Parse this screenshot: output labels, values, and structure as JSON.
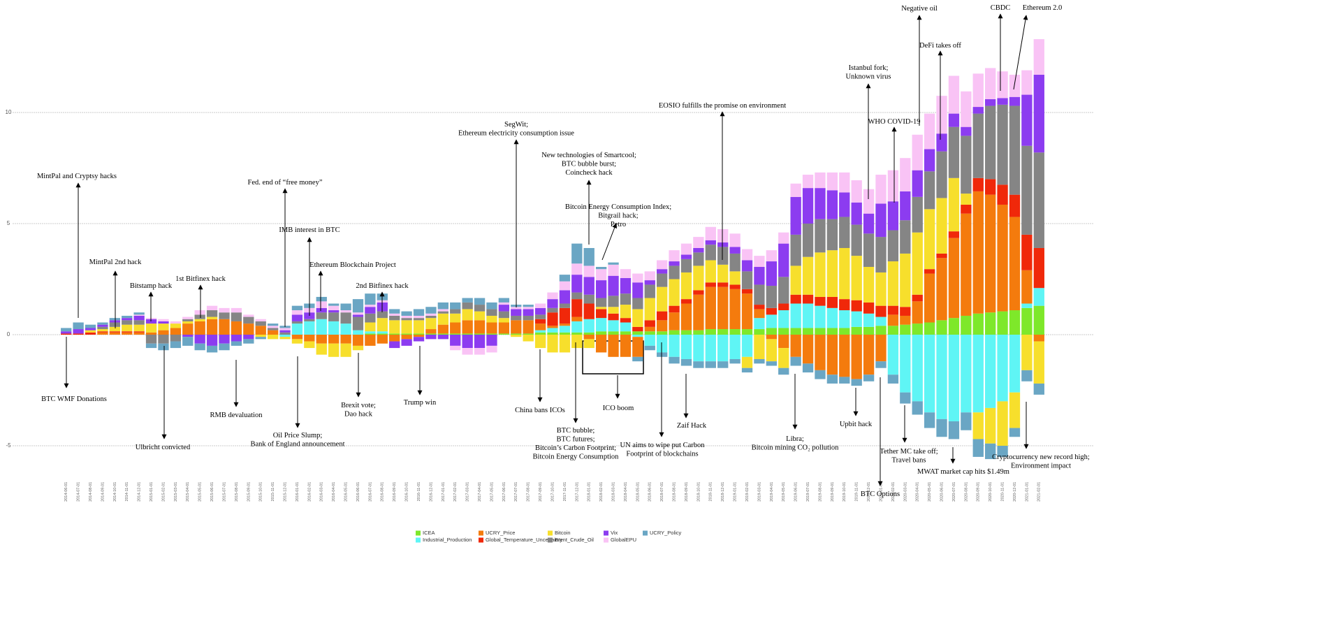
{
  "chart_data": {
    "type": "stacked_bar",
    "categories": [
      "2014-06-01",
      "2014-07-01",
      "2014-08-01",
      "2014-09-01",
      "2014-10-01",
      "2014-11-01",
      "2014-12-01",
      "2015-01-01",
      "2015-02-01",
      "2015-03-01",
      "2015-04-01",
      "2015-05-01",
      "2015-06-01",
      "2015-07-01",
      "2015-08-01",
      "2015-09-01",
      "2015-10-01",
      "2015-11-01",
      "2015-12-01",
      "2016-01-01",
      "2016-02-01",
      "2016-03-01",
      "2016-04-01",
      "2016-05-01",
      "2016-06-01",
      "2016-07-01",
      "2016-08-01",
      "2016-09-01",
      "2016-10-01",
      "2016-11-01",
      "2016-12-01",
      "2017-01-01",
      "2017-02-01",
      "2017-03-01",
      "2017-04-01",
      "2017-05-01",
      "2017-06-01",
      "2017-07-01",
      "2017-08-01",
      "2017-09-01",
      "2017-10-01",
      "2017-11-01",
      "2017-12-01",
      "2018-01-01",
      "2018-02-01",
      "2018-03-01",
      "2018-04-01",
      "2018-05-01",
      "2018-06-01",
      "2018-07-01",
      "2018-08-01",
      "2018-09-01",
      "2018-10-01",
      "2018-11-01",
      "2018-12-01",
      "2019-01-01",
      "2019-02-01",
      "2019-03-01",
      "2019-04-01",
      "2019-05-01",
      "2019-06-01",
      "2019-07-01",
      "2019-08-01",
      "2019-09-01",
      "2019-10-01",
      "2019-11-01",
      "2019-12-01",
      "2020-01-01",
      "2020-02-01",
      "2020-03-01",
      "2020-04-01",
      "2020-05-01",
      "2020-06-01",
      "2020-07-01",
      "2020-08-01",
      "2020-09-01",
      "2020-10-01",
      "2020-11-01",
      "2020-12-01",
      "2021-01-01",
      "2021-02-01"
    ],
    "series": [
      {
        "name": "ICEA",
        "color": "#7ee82a",
        "values": [
          0,
          0,
          0,
          0,
          0,
          0,
          0,
          0,
          0,
          0,
          0,
          0,
          0,
          0,
          0,
          0,
          0,
          0,
          0,
          0,
          0,
          0,
          0,
          0,
          0,
          0.05,
          0.05,
          0.05,
          0.05,
          0.05,
          0.05,
          0.05,
          0.05,
          0.05,
          0.05,
          0.05,
          0.05,
          0.05,
          0.05,
          0.1,
          0.1,
          0.1,
          0.1,
          0.1,
          0.15,
          0.15,
          0.15,
          0.15,
          0.15,
          0.15,
          0.2,
          0.2,
          0.2,
          0.25,
          0.25,
          0.25,
          0.25,
          0.25,
          0.3,
          0.3,
          0.3,
          0.3,
          0.3,
          0.3,
          0.3,
          0.35,
          0.35,
          0.4,
          0.4,
          0.45,
          0.5,
          0.55,
          0.65,
          0.75,
          0.85,
          0.95,
          1.0,
          1.05,
          1.1,
          1.2,
          1.3
        ]
      },
      {
        "name": "Industrial_Production",
        "color": "#5ff5f5",
        "values": [
          0,
          0,
          0,
          0,
          0,
          0,
          0,
          0,
          0,
          0,
          0,
          0,
          0,
          0,
          0,
          0,
          0,
          0,
          -0.1,
          0.5,
          0.6,
          0.7,
          0.6,
          0.5,
          0.2,
          0.1,
          0.1,
          0,
          0,
          0,
          0,
          0,
          0,
          0,
          0,
          0,
          0,
          0,
          0,
          0.1,
          0.2,
          0.3,
          0.5,
          0.6,
          0.6,
          0.5,
          0.4,
          -0.1,
          -0.5,
          -0.8,
          -1.0,
          -1.1,
          -1.2,
          -1.2,
          -1.2,
          -1.1,
          -1.0,
          0.5,
          0.6,
          0.8,
          1.1,
          1.1,
          1.0,
          0.9,
          0.8,
          0.7,
          0.6,
          0.4,
          -1.8,
          -2.6,
          -3.0,
          -3.5,
          -3.8,
          -3.9,
          -3.5,
          -3.5,
          -3.3,
          -3.0,
          -2.6,
          0.2,
          0.8
        ]
      },
      {
        "name": "UCRY_Price",
        "color": "#f47b0d",
        "values": [
          0,
          0,
          0,
          0.1,
          0.1,
          0.1,
          0.1,
          0.1,
          0.2,
          0.3,
          0.5,
          0.6,
          0.7,
          0.7,
          0.6,
          0.5,
          0.4,
          0.2,
          0,
          -0.2,
          -0.3,
          -0.4,
          -0.4,
          -0.4,
          -0.5,
          -0.5,
          -0.4,
          -0.3,
          -0.2,
          -0.1,
          0.2,
          0.4,
          0.5,
          0.6,
          0.6,
          0.5,
          0.5,
          0.6,
          0.6,
          0.3,
          0.1,
          0.1,
          0.2,
          -0.2,
          -0.8,
          -1.0,
          -1.0,
          -0.9,
          0.2,
          0.5,
          0.8,
          1.2,
          1.6,
          1.9,
          1.9,
          1.8,
          1.6,
          0.4,
          -0.2,
          -0.6,
          -1.0,
          -1.3,
          -1.6,
          -1.8,
          -1.9,
          -2.0,
          -1.8,
          -1.2,
          0.5,
          0.4,
          1.0,
          2.2,
          2.8,
          3.6,
          4.6,
          5.5,
          5.3,
          4.8,
          4.2,
          1.5,
          -0.3
        ]
      },
      {
        "name": "Global_Temperature_Uncertainty",
        "color": "#f0280a",
        "values": [
          0.05,
          0.05,
          0.1,
          0.05,
          0.05,
          0.05,
          0.05,
          0,
          0,
          0,
          0,
          0,
          0,
          0,
          0,
          0,
          0,
          0,
          0,
          0,
          0,
          0,
          0,
          0,
          0,
          0,
          0,
          0,
          0,
          0,
          0,
          0,
          0,
          0,
          0,
          0,
          0,
          0,
          0,
          0.2,
          0.6,
          0.7,
          0.8,
          0.7,
          0.4,
          0.3,
          0.2,
          0.2,
          0.3,
          0.4,
          0.3,
          0.2,
          0.2,
          0.2,
          0.2,
          0.2,
          0.2,
          0.2,
          0.3,
          0.3,
          0.4,
          0.4,
          0.4,
          0.5,
          0.5,
          0.5,
          0.5,
          0.5,
          0.4,
          0.4,
          0.3,
          0.2,
          0.2,
          0.3,
          0.4,
          0.6,
          0.7,
          0.9,
          1.0,
          1.6,
          1.8
        ]
      },
      {
        "name": "Bitcoin",
        "color": "#f7df2c",
        "values": [
          0,
          0,
          0.1,
          0.1,
          0.2,
          0.3,
          0.3,
          0.4,
          0.3,
          0.2,
          0.1,
          0.1,
          0.1,
          0,
          0,
          0,
          -0.1,
          -0.2,
          -0.1,
          -0.2,
          -0.3,
          -0.5,
          -0.6,
          -0.6,
          -0.2,
          0.4,
          0.6,
          0.6,
          0.6,
          0.6,
          0.5,
          0.5,
          0.4,
          0.5,
          0.4,
          0.3,
          0.2,
          -0.1,
          -0.3,
          -0.6,
          -0.8,
          -0.8,
          -0.6,
          -0.4,
          0.1,
          0.3,
          0.6,
          0.8,
          1.0,
          1.1,
          1.2,
          1.2,
          1.1,
          1.0,
          0.8,
          0.6,
          -0.5,
          -1.1,
          -1.0,
          -0.9,
          1.3,
          1.7,
          2.0,
          2.1,
          2.3,
          2.0,
          1.6,
          1.5,
          2.0,
          2.4,
          2.8,
          2.7,
          2.5,
          2.4,
          0.5,
          -1.2,
          -1.6,
          -2.0,
          -1.6,
          -1.6,
          -1.9
        ]
      },
      {
        "name": "Brent_Crude_Oil",
        "color": "#858585",
        "values": [
          0,
          0,
          0,
          0.1,
          0.2,
          0.2,
          0.2,
          -0.4,
          -0.4,
          -0.3,
          0.1,
          0.2,
          0.3,
          0.3,
          0.4,
          0.3,
          0.2,
          0.1,
          0.1,
          0.1,
          0.1,
          0.3,
          0.4,
          0.5,
          0.6,
          0.4,
          0.3,
          0.2,
          0.1,
          0.1,
          0.1,
          0.1,
          0.2,
          0.3,
          0.3,
          0.3,
          0.3,
          0.2,
          0.2,
          0.2,
          0.2,
          0.2,
          0.3,
          0.4,
          0.4,
          0.5,
          0.5,
          0.5,
          0.6,
          0.6,
          0.6,
          0.6,
          0.6,
          0.7,
          0.8,
          0.8,
          0.8,
          0.9,
          1.0,
          1.2,
          1.4,
          1.5,
          1.5,
          1.4,
          1.4,
          1.4,
          1.5,
          1.6,
          1.4,
          1.5,
          1.6,
          1.7,
          2.1,
          2.3,
          2.6,
          2.9,
          3.3,
          3.6,
          4.0,
          4.0,
          4.3
        ]
      },
      {
        "name": "Vix",
        "color": "#8c3cf0",
        "values": [
          0.1,
          0.2,
          0.1,
          0.1,
          0.1,
          0.1,
          0.2,
          0.2,
          0.1,
          0,
          -0.1,
          -0.4,
          -0.5,
          -0.4,
          -0.3,
          -0.2,
          0,
          0,
          0.1,
          0.3,
          0.3,
          0.2,
          0.1,
          0,
          0.1,
          0.3,
          0.4,
          -0.3,
          -0.3,
          -0.2,
          -0.2,
          -0.2,
          -0.5,
          -0.6,
          -0.6,
          -0.5,
          0.3,
          0.3,
          0.3,
          0.3,
          0.4,
          0.6,
          0.8,
          0.8,
          0.8,
          0.9,
          0.7,
          0.7,
          0.2,
          0.2,
          0.2,
          0.2,
          0.2,
          0.2,
          0.2,
          0.3,
          0.5,
          0.8,
          1.1,
          1.5,
          1.7,
          1.6,
          1.4,
          1.3,
          1.1,
          1.0,
          0.9,
          1.5,
          1.3,
          1.3,
          1.2,
          1.0,
          0.8,
          0.6,
          0.4,
          0.3,
          0.3,
          0.3,
          0.4,
          2.3,
          3.5
        ]
      },
      {
        "name": "GlobalEPU",
        "color": "#f9c3f5",
        "values": [
          0,
          0,
          0,
          0,
          0,
          0,
          0.05,
          0.05,
          0.1,
          0.1,
          0.1,
          0.2,
          0.2,
          0.2,
          0.2,
          0.1,
          0.1,
          0.1,
          0.1,
          0.2,
          0.2,
          0.3,
          0.2,
          0.1,
          0.1,
          0.1,
          0.1,
          0.1,
          0.1,
          0.1,
          0.1,
          0.1,
          -0.2,
          -0.3,
          -0.3,
          -0.3,
          0.1,
          0.1,
          0.1,
          0.2,
          0.3,
          0.4,
          0.5,
          0.5,
          0.5,
          0.5,
          0.4,
          0.4,
          0.4,
          0.4,
          0.5,
          0.5,
          0.5,
          0.6,
          0.6,
          0.6,
          0.5,
          0.5,
          0.5,
          0.5,
          0.6,
          0.6,
          0.7,
          0.8,
          0.9,
          1.0,
          1.1,
          1.3,
          1.4,
          1.5,
          1.6,
          1.6,
          1.7,
          1.7,
          1.6,
          1.5,
          1.4,
          1.2,
          1.0,
          1.1,
          1.6
        ]
      },
      {
        "name": "UCRY_Policy",
        "color": "#6aa6c4",
        "values": [
          0.15,
          0.3,
          0.15,
          0.1,
          0.1,
          0.1,
          0.1,
          -0.2,
          -0.3,
          -0.3,
          -0.4,
          -0.3,
          -0.3,
          -0.3,
          -0.2,
          -0.2,
          -0.1,
          0.1,
          0.1,
          0.2,
          0.2,
          0.2,
          0.1,
          0.3,
          0.6,
          0.5,
          0.3,
          0.2,
          0.2,
          0.3,
          0.3,
          0.3,
          0.3,
          0.2,
          0.3,
          0.3,
          0.2,
          0.1,
          0.1,
          0,
          0,
          0.3,
          0.9,
          0.8,
          0.1,
          0.1,
          0,
          -0.2,
          -0.2,
          -0.2,
          -0.3,
          -0.3,
          -0.3,
          -0.3,
          -0.3,
          -0.2,
          -0.2,
          -0.2,
          -0.2,
          -0.3,
          -0.4,
          -0.4,
          -0.4,
          -0.4,
          -0.3,
          -0.3,
          -0.3,
          -0.3,
          -0.4,
          -0.5,
          -0.6,
          -0.7,
          -0.8,
          -0.8,
          -0.8,
          -0.8,
          -0.7,
          -0.5,
          -0.4,
          -0.5,
          -0.5
        ]
      }
    ],
    "ylim": [
      -6.5,
      15
    ],
    "yticks": [
      -5,
      0,
      5,
      10
    ],
    "grid": true,
    "annotations": [
      [
        "MintPal and Cryptsy hacks"
      ],
      [
        "BTC WMF Donations"
      ],
      [
        "MintPal 2nd hack"
      ],
      [
        "Bitstamp hack"
      ],
      [
        "1st Bitfinex hack"
      ],
      [
        "Ulbricht convicted"
      ],
      [
        "RMB devaluation"
      ],
      [
        "Fed. end of “free money”"
      ],
      [
        "Oil Price Slump;",
        "Bank of England announcement"
      ],
      [
        "IMB interest in BTC"
      ],
      [
        "Ethereum Blockchain Project"
      ],
      [
        "2nd Bitfinex hack"
      ],
      [
        "Brexit vote;",
        "Dao hack"
      ],
      [
        "Trump win"
      ],
      [
        "SegWit;",
        "Ethereum electricity consumption issue"
      ],
      [
        "China bans ICOs"
      ],
      [
        "New technologies of Smartcool;",
        "BTC bubble burst;",
        "Coincheck hack"
      ],
      [
        "Bitcoin Energy Consumption Index;",
        "Bitgrail hack;",
        "Petro"
      ],
      [
        "BTC bubble;",
        "BTC futures;",
        "Bitcoin’s Carbon Footprint;",
        "Bitcoin Energy Consumption"
      ],
      [
        "ICO boom"
      ],
      [
        "UN aims to wipe put Carbon",
        "Footprint of blockchains"
      ],
      [
        "EOSIO fulfills the promise on environment"
      ],
      [
        "Zaif Hack"
      ],
      [
        "Libra;",
        "Bitcoin mining CO₂ pollution"
      ],
      [
        "Istanbul fork;",
        "Unknown virus"
      ],
      [
        "Upbit hack"
      ],
      [
        "WHO COVID-19"
      ],
      [
        "Negative oil"
      ],
      [
        "DeFi takes off"
      ],
      [
        "BTC Options"
      ],
      [
        "Tether MC take off;",
        "Travel bans"
      ],
      [
        "MWAT market cap hits $1.49m"
      ],
      [
        "CBDC"
      ],
      [
        "Ethereum  2.0"
      ],
      [
        "Cryptocurrency new record high;",
        "Environment impact"
      ]
    ]
  }
}
